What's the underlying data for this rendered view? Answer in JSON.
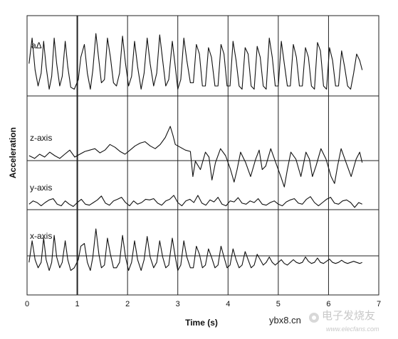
{
  "chart_data": {
    "type": "line",
    "xlabel": "Time (s)",
    "ylabel": "Acceleration",
    "xlim": [
      0,
      7
    ],
    "x_ticks": [
      "0",
      "1",
      "2",
      "3",
      "4",
      "5",
      "6",
      "7"
    ],
    "grid": true,
    "series": [
      {
        "name": "aΔ",
        "x": [
          0.04,
          0.1,
          0.16,
          0.22,
          0.28,
          0.33,
          0.38,
          0.44,
          0.49,
          0.54,
          0.59,
          0.65,
          0.7,
          0.76,
          0.81,
          0.87,
          0.94,
          1.02,
          1.07,
          1.14,
          1.2,
          1.26,
          1.31,
          1.37,
          1.43,
          1.48,
          1.54,
          1.6,
          1.66,
          1.72,
          1.78,
          1.84,
          1.9,
          1.96,
          2.02,
          2.08,
          2.14,
          2.2,
          2.27,
          2.33,
          2.39,
          2.45,
          2.52,
          2.58,
          2.64,
          2.7,
          2.76,
          2.82,
          2.89,
          2.95,
          3.0,
          3.06,
          3.12,
          3.18,
          3.25,
          3.31,
          3.37,
          3.43,
          3.49,
          3.55,
          3.61,
          3.67,
          3.74,
          3.8,
          3.86,
          3.92,
          3.98,
          4.04,
          4.1,
          4.16,
          4.22,
          4.28,
          4.34,
          4.4,
          4.46,
          4.52,
          4.58,
          4.64,
          4.7,
          4.76,
          4.82,
          4.88,
          4.94,
          5.0,
          5.06,
          5.12,
          5.18,
          5.24,
          5.3,
          5.36,
          5.42,
          5.48,
          5.54,
          5.6,
          5.66,
          5.72,
          5.78,
          5.84,
          5.9,
          5.96,
          6.02,
          6.08,
          6.14,
          6.2,
          6.26,
          6.32,
          6.38,
          6.44,
          6.5,
          6.56,
          6.62,
          6.67
        ],
        "y": [
          0.45,
          0.85,
          0.35,
          0.1,
          0.3,
          0.8,
          0.4,
          0.05,
          0.25,
          0.85,
          0.45,
          0.1,
          0.25,
          0.8,
          0.4,
          0.08,
          0.05,
          0.2,
          0.55,
          0.75,
          0.3,
          0.05,
          0.35,
          0.92,
          0.5,
          0.15,
          0.2,
          0.85,
          0.55,
          0.15,
          0.1,
          0.3,
          0.88,
          0.45,
          0.1,
          0.25,
          0.8,
          0.4,
          0.05,
          0.3,
          0.85,
          0.45,
          0.1,
          0.3,
          0.9,
          0.5,
          0.1,
          0.2,
          0.8,
          0.4,
          0.05,
          0.2,
          0.85,
          0.5,
          0.15,
          0.15,
          0.75,
          0.6,
          0.1,
          0.1,
          0.7,
          0.55,
          0.1,
          0.1,
          0.75,
          0.6,
          0.1,
          0.1,
          0.8,
          0.5,
          0.1,
          0.05,
          0.7,
          0.6,
          0.1,
          0.05,
          0.72,
          0.55,
          0.1,
          0.05,
          0.85,
          0.55,
          0.1,
          0.1,
          0.8,
          0.45,
          0.1,
          0.1,
          0.75,
          0.55,
          0.1,
          0.1,
          0.7,
          0.55,
          0.1,
          0.05,
          0.78,
          0.65,
          0.1,
          0.05,
          0.7,
          0.5,
          0.1,
          0.1,
          0.65,
          0.4,
          0.1,
          0.05,
          0.3,
          0.6,
          0.5,
          0.35
        ]
      },
      {
        "name": "z-axis",
        "x": [
          0.04,
          0.15,
          0.25,
          0.35,
          0.45,
          0.55,
          0.65,
          0.75,
          0.85,
          0.95,
          1.05,
          1.15,
          1.25,
          1.35,
          1.45,
          1.55,
          1.65,
          1.75,
          1.85,
          1.95,
          2.05,
          2.15,
          2.25,
          2.35,
          2.45,
          2.55,
          2.65,
          2.75,
          2.85,
          2.9,
          2.95,
          3.05,
          3.15,
          3.25,
          3.3,
          3.35,
          3.45,
          3.55,
          3.62,
          3.68,
          3.75,
          3.85,
          3.95,
          4.05,
          4.12,
          4.18,
          4.25,
          4.35,
          4.45,
          4.55,
          4.62,
          4.68,
          4.75,
          4.85,
          4.95,
          5.05,
          5.12,
          5.18,
          5.25,
          5.35,
          5.45,
          5.55,
          5.62,
          5.68,
          5.75,
          5.85,
          5.95,
          6.05,
          6.12,
          6.18,
          6.25,
          6.35,
          6.45,
          6.55,
          6.62,
          6.67
        ],
        "y": [
          0.5,
          0.46,
          0.52,
          0.48,
          0.55,
          0.5,
          0.46,
          0.52,
          0.58,
          0.48,
          0.52,
          0.56,
          0.58,
          0.6,
          0.54,
          0.58,
          0.66,
          0.62,
          0.56,
          0.52,
          0.58,
          0.64,
          0.68,
          0.7,
          0.64,
          0.6,
          0.66,
          0.76,
          0.92,
          0.8,
          0.66,
          0.62,
          0.58,
          0.56,
          0.2,
          0.42,
          0.3,
          0.55,
          0.48,
          0.15,
          0.4,
          0.6,
          0.5,
          0.3,
          0.12,
          0.3,
          0.55,
          0.4,
          0.2,
          0.45,
          0.58,
          0.3,
          0.35,
          0.6,
          0.4,
          0.2,
          0.05,
          0.3,
          0.55,
          0.45,
          0.2,
          0.55,
          0.45,
          0.2,
          0.35,
          0.6,
          0.45,
          0.2,
          0.1,
          0.35,
          0.6,
          0.4,
          0.2,
          0.45,
          0.55,
          0.4
        ]
      },
      {
        "name": "y-axis",
        "x": [
          0.04,
          0.12,
          0.2,
          0.28,
          0.36,
          0.44,
          0.52,
          0.6,
          0.68,
          0.76,
          0.84,
          0.92,
          1.0,
          1.08,
          1.16,
          1.24,
          1.32,
          1.4,
          1.48,
          1.56,
          1.64,
          1.72,
          1.8,
          1.88,
          1.96,
          2.04,
          2.12,
          2.2,
          2.28,
          2.36,
          2.44,
          2.52,
          2.6,
          2.68,
          2.76,
          2.84,
          2.92,
          3.0,
          3.08,
          3.16,
          3.24,
          3.32,
          3.4,
          3.48,
          3.56,
          3.64,
          3.72,
          3.8,
          3.88,
          3.96,
          4.04,
          4.12,
          4.2,
          4.28,
          4.36,
          4.44,
          4.52,
          4.6,
          4.68,
          4.76,
          4.84,
          4.92,
          5.0,
          5.08,
          5.16,
          5.24,
          5.32,
          5.4,
          5.48,
          5.56,
          5.64,
          5.72,
          5.8,
          5.88,
          5.96,
          6.04,
          6.12,
          6.2,
          6.28,
          6.36,
          6.44,
          6.52,
          6.6,
          6.67
        ],
        "y": [
          0.45,
          0.55,
          0.5,
          0.4,
          0.5,
          0.58,
          0.62,
          0.45,
          0.4,
          0.55,
          0.45,
          0.38,
          0.5,
          0.6,
          0.45,
          0.42,
          0.5,
          0.58,
          0.7,
          0.48,
          0.42,
          0.55,
          0.6,
          0.66,
          0.5,
          0.4,
          0.55,
          0.45,
          0.5,
          0.6,
          0.58,
          0.62,
          0.48,
          0.42,
          0.55,
          0.6,
          0.72,
          0.5,
          0.4,
          0.55,
          0.6,
          0.5,
          0.72,
          0.48,
          0.42,
          0.58,
          0.52,
          0.66,
          0.45,
          0.4,
          0.55,
          0.52,
          0.65,
          0.48,
          0.45,
          0.55,
          0.5,
          0.62,
          0.45,
          0.42,
          0.5,
          0.55,
          0.45,
          0.4,
          0.52,
          0.58,
          0.62,
          0.48,
          0.45,
          0.6,
          0.68,
          0.5,
          0.4,
          0.5,
          0.6,
          0.66,
          0.48,
          0.45,
          0.55,
          0.58,
          0.5,
          0.35,
          0.5,
          0.45
        ]
      },
      {
        "name": "x-axis",
        "x": [
          0.04,
          0.1,
          0.16,
          0.22,
          0.28,
          0.33,
          0.38,
          0.44,
          0.49,
          0.54,
          0.59,
          0.65,
          0.7,
          0.76,
          0.81,
          0.87,
          0.94,
          1.02,
          1.07,
          1.14,
          1.2,
          1.26,
          1.31,
          1.37,
          1.43,
          1.48,
          1.54,
          1.6,
          1.66,
          1.72,
          1.78,
          1.84,
          1.9,
          1.96,
          2.02,
          2.08,
          2.14,
          2.2,
          2.27,
          2.33,
          2.39,
          2.45,
          2.52,
          2.58,
          2.64,
          2.7,
          2.76,
          2.82,
          2.89,
          2.95,
          3.0,
          3.06,
          3.12,
          3.18,
          3.25,
          3.31,
          3.37,
          3.43,
          3.49,
          3.55,
          3.61,
          3.67,
          3.74,
          3.8,
          3.86,
          3.92,
          3.98,
          4.04,
          4.1,
          4.16,
          4.22,
          4.28,
          4.34,
          4.4,
          4.46,
          4.52,
          4.58,
          4.64,
          4.7,
          4.76,
          4.82,
          4.88,
          4.94,
          5.0,
          5.06,
          5.12,
          5.18,
          5.24,
          5.3,
          5.36,
          5.42,
          5.48,
          5.54,
          5.6,
          5.66,
          5.72,
          5.78,
          5.84,
          5.9,
          5.96,
          6.02,
          6.08,
          6.14,
          6.2,
          6.26,
          6.32,
          6.38,
          6.44,
          6.5,
          6.56,
          6.62,
          6.67
        ],
        "y": [
          0.3,
          0.7,
          0.35,
          0.2,
          0.3,
          0.75,
          0.35,
          0.15,
          0.3,
          0.8,
          0.4,
          0.2,
          0.3,
          0.7,
          0.35,
          0.15,
          0.2,
          0.35,
          0.6,
          0.65,
          0.3,
          0.15,
          0.4,
          0.92,
          0.45,
          0.2,
          0.25,
          0.75,
          0.45,
          0.2,
          0.2,
          0.3,
          0.8,
          0.4,
          0.15,
          0.3,
          0.7,
          0.35,
          0.15,
          0.35,
          0.78,
          0.4,
          0.2,
          0.3,
          0.7,
          0.4,
          0.2,
          0.25,
          0.75,
          0.4,
          0.15,
          0.25,
          0.7,
          0.4,
          0.2,
          0.2,
          0.6,
          0.45,
          0.2,
          0.25,
          0.55,
          0.4,
          0.2,
          0.25,
          0.6,
          0.4,
          0.2,
          0.25,
          0.55,
          0.35,
          0.2,
          0.25,
          0.5,
          0.35,
          0.2,
          0.25,
          0.45,
          0.35,
          0.25,
          0.3,
          0.4,
          0.3,
          0.25,
          0.3,
          0.35,
          0.28,
          0.25,
          0.3,
          0.35,
          0.3,
          0.28,
          0.3,
          0.4,
          0.32,
          0.28,
          0.3,
          0.38,
          0.3,
          0.28,
          0.32,
          0.36,
          0.3,
          0.28,
          0.3,
          0.34,
          0.3,
          0.28,
          0.3,
          0.32,
          0.3,
          0.28,
          0.3
        ]
      }
    ]
  },
  "watermark": {
    "site_text": "ybx8.cn",
    "brand_text": "电子发烧友",
    "url_text": "www.elecfans.com"
  }
}
